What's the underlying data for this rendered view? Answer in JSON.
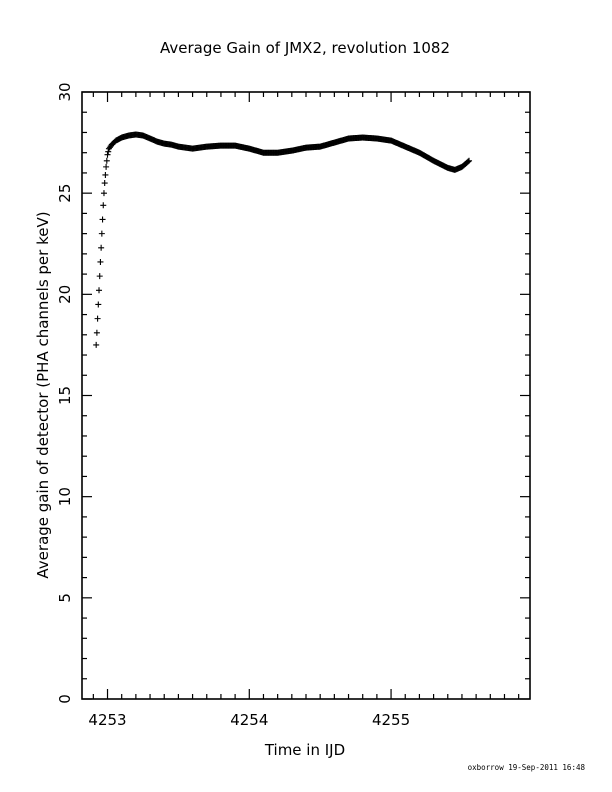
{
  "chart_data": {
    "type": "scatter",
    "title": "Average Gain of JMX2, revolution 1082",
    "xlabel": "Time in IJD",
    "ylabel": "Average gain of detector (PHA channels per keV)",
    "xlim": [
      4252.82,
      4255.98
    ],
    "ylim": [
      0,
      30
    ],
    "xticks": [
      4253,
      4254,
      4255
    ],
    "xtick_labels": [
      "4253",
      "4254",
      "4255"
    ],
    "yticks": [
      0,
      5,
      10,
      15,
      20,
      25,
      30
    ],
    "ytick_labels": [
      "0",
      "5",
      "10",
      "15",
      "20",
      "25",
      "30"
    ],
    "marker": "+",
    "grid": false,
    "footer": "oxborrow 19-Sep-2011 16:48",
    "series": [
      {
        "points": [
          [
            4252.92,
            17.5
          ],
          [
            4252.925,
            18.1
          ],
          [
            4252.93,
            18.8
          ],
          [
            4252.935,
            19.5
          ],
          [
            4252.94,
            20.2
          ],
          [
            4252.945,
            20.9
          ],
          [
            4252.95,
            21.6
          ],
          [
            4252.955,
            22.3
          ],
          [
            4252.96,
            23.0
          ],
          [
            4252.965,
            23.7
          ],
          [
            4252.97,
            24.4
          ],
          [
            4252.975,
            25.0
          ],
          [
            4252.98,
            25.5
          ],
          [
            4252.985,
            25.9
          ],
          [
            4252.99,
            26.3
          ],
          [
            4252.995,
            26.6
          ],
          [
            4253.0,
            26.9
          ],
          [
            4253.01,
            27.2
          ],
          [
            4253.03,
            27.4
          ],
          [
            4253.06,
            27.6
          ],
          [
            4253.1,
            27.75
          ],
          [
            4253.15,
            27.85
          ],
          [
            4253.2,
            27.9
          ],
          [
            4253.25,
            27.85
          ],
          [
            4253.3,
            27.7
          ],
          [
            4253.35,
            27.55
          ],
          [
            4253.4,
            27.45
          ],
          [
            4253.45,
            27.4
          ],
          [
            4253.5,
            27.3
          ],
          [
            4253.55,
            27.25
          ],
          [
            4253.6,
            27.2
          ],
          [
            4253.65,
            27.25
          ],
          [
            4253.7,
            27.3
          ],
          [
            4253.8,
            27.35
          ],
          [
            4253.9,
            27.35
          ],
          [
            4254.0,
            27.2
          ],
          [
            4254.1,
            27.0
          ],
          [
            4254.2,
            27.0
          ],
          [
            4254.3,
            27.1
          ],
          [
            4254.4,
            27.25
          ],
          [
            4254.5,
            27.3
          ],
          [
            4254.6,
            27.5
          ],
          [
            4254.7,
            27.7
          ],
          [
            4254.8,
            27.75
          ],
          [
            4254.9,
            27.7
          ],
          [
            4255.0,
            27.6
          ],
          [
            4255.1,
            27.3
          ],
          [
            4255.2,
            27.0
          ],
          [
            4255.3,
            26.6
          ],
          [
            4255.4,
            26.25
          ],
          [
            4255.45,
            26.15
          ],
          [
            4255.5,
            26.3
          ],
          [
            4255.55,
            26.6
          ]
        ]
      }
    ]
  }
}
